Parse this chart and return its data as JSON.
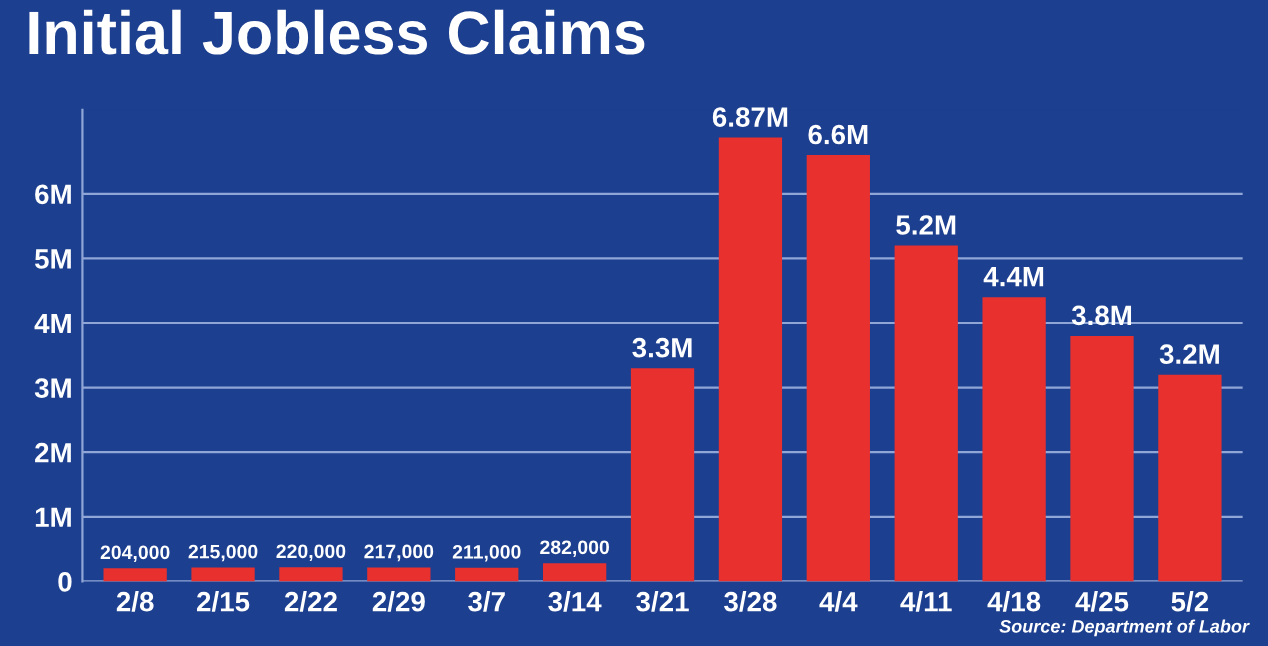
{
  "chart_data": {
    "type": "bar",
    "title": "Initial Jobless Claims",
    "categories": [
      "2/8",
      "2/15",
      "2/22",
      "2/29",
      "3/7",
      "3/14",
      "3/21",
      "3/28",
      "4/4",
      "4/11",
      "4/18",
      "4/25",
      "5/2"
    ],
    "values": [
      204000,
      215000,
      220000,
      217000,
      211000,
      282000,
      3300000,
      6870000,
      6600000,
      5200000,
      4400000,
      3800000,
      3200000
    ],
    "value_labels": [
      "204,000",
      "215,000",
      "220,000",
      "217,000",
      "211,000",
      "282,000",
      "3.3M",
      "6.87M",
      "6.6M",
      "5.2M",
      "4.4M",
      "3.8M",
      "3.2M"
    ],
    "color": "#e8302f",
    "ylim": [
      0,
      7300000
    ],
    "yticks": [
      0,
      {
        "value": 1000000,
        "label": "1M"
      },
      {
        "value": 2000000,
        "label": "2M"
      },
      {
        "value": 3000000,
        "label": "3M"
      },
      {
        "value": 4000000,
        "label": "4M"
      },
      {
        "value": 5000000,
        "label": "5M"
      },
      {
        "value": 6000000,
        "label": "6M"
      }
    ],
    "grid": "y",
    "annotations": [
      "Source: Department of Labor"
    ]
  }
}
